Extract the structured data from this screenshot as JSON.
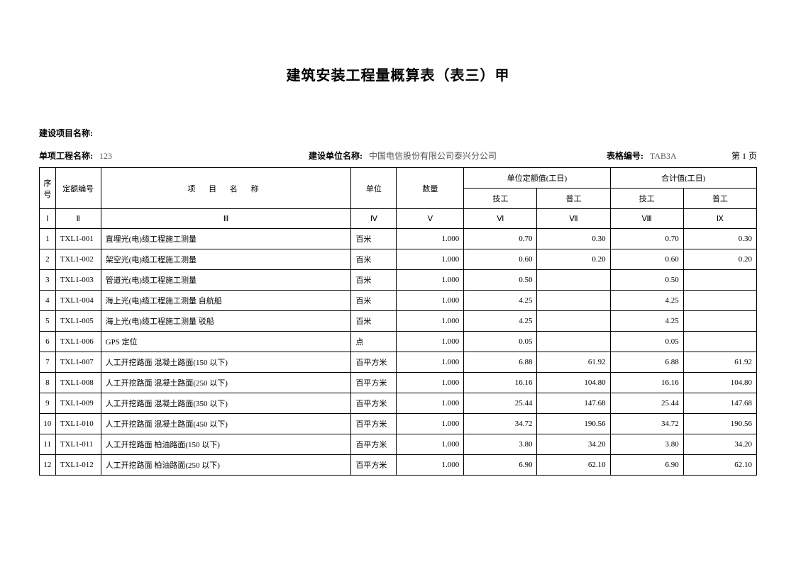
{
  "title": "建筑安装工程量概算表（表三）甲",
  "meta": {
    "projectLabel": "建设项目名称:",
    "projectValue": "",
    "itemLabel": "单项工程名称:",
    "itemValue": "123",
    "orgLabel": "建设单位名称:",
    "orgValue": "中国电信股份有限公司泰兴分公司",
    "formLabel": "表格编号:",
    "formValue": "TAB3A",
    "pageText": "第 1 页"
  },
  "headers": {
    "seq": "序号",
    "code": "定额编号",
    "name": "项 目 名 称",
    "unit": "单位",
    "qty": "数量",
    "unitQuota": "单位定额值(工日)",
    "total": "合计值(工日)",
    "skilled": "技工",
    "unskilled": "普工"
  },
  "roman": [
    "Ⅰ",
    "Ⅱ",
    "Ⅲ",
    "Ⅳ",
    "Ⅴ",
    "Ⅵ",
    "Ⅶ",
    "Ⅷ",
    "Ⅸ"
  ],
  "rows": [
    {
      "seq": "1",
      "code": "TXL1-001",
      "name": "直埋光(电)缆工程施工测量",
      "unit": "百米",
      "qty": "1.000",
      "uSk": "0.70",
      "uUn": "0.30",
      "tSk": "0.70",
      "tUn": "0.30"
    },
    {
      "seq": "2",
      "code": "TXL1-002",
      "name": "架空光(电)缆工程施工测量",
      "unit": "百米",
      "qty": "1.000",
      "uSk": "0.60",
      "uUn": "0.20",
      "tSk": "0.60",
      "tUn": "0.20"
    },
    {
      "seq": "3",
      "code": "TXL1-003",
      "name": "管道光(电)缆工程施工测量",
      "unit": "百米",
      "qty": "1.000",
      "uSk": "0.50",
      "uUn": "",
      "tSk": "0.50",
      "tUn": ""
    },
    {
      "seq": "4",
      "code": "TXL1-004",
      "name": "海上光(电)缆工程施工测量 自航船",
      "unit": "百米",
      "qty": "1.000",
      "uSk": "4.25",
      "uUn": "",
      "tSk": "4.25",
      "tUn": ""
    },
    {
      "seq": "5",
      "code": "TXL1-005",
      "name": "海上光(电)缆工程施工测量 驳船",
      "unit": "百米",
      "qty": "1.000",
      "uSk": "4.25",
      "uUn": "",
      "tSk": "4.25",
      "tUn": ""
    },
    {
      "seq": "6",
      "code": "TXL1-006",
      "name": "GPS 定位",
      "unit": "点",
      "qty": "1.000",
      "uSk": "0.05",
      "uUn": "",
      "tSk": "0.05",
      "tUn": ""
    },
    {
      "seq": "7",
      "code": "TXL1-007",
      "name": "人工开挖路面 混凝土路面(150 以下)",
      "unit": "百平方米",
      "qty": "1.000",
      "uSk": "6.88",
      "uUn": "61.92",
      "tSk": "6.88",
      "tUn": "61.92"
    },
    {
      "seq": "8",
      "code": "TXL1-008",
      "name": "人工开挖路面 混凝土路面(250 以下)",
      "unit": "百平方米",
      "qty": "1.000",
      "uSk": "16.16",
      "uUn": "104.80",
      "tSk": "16.16",
      "tUn": "104.80"
    },
    {
      "seq": "9",
      "code": "TXL1-009",
      "name": "人工开挖路面 混凝土路面(350 以下)",
      "unit": "百平方米",
      "qty": "1.000",
      "uSk": "25.44",
      "uUn": "147.68",
      "tSk": "25.44",
      "tUn": "147.68"
    },
    {
      "seq": "10",
      "code": "TXL1-010",
      "name": "人工开挖路面 混凝土路面(450 以下)",
      "unit": "百平方米",
      "qty": "1.000",
      "uSk": "34.72",
      "uUn": "190.56",
      "tSk": "34.72",
      "tUn": "190.56"
    },
    {
      "seq": "11",
      "code": "TXL1-011",
      "name": "人工开挖路面 柏油路面(150 以下)",
      "unit": "百平方米",
      "qty": "1.000",
      "uSk": "3.80",
      "uUn": "34.20",
      "tSk": "3.80",
      "tUn": "34.20"
    },
    {
      "seq": "12",
      "code": "TXL1-012",
      "name": "人工开挖路面 柏油路面(250 以下)",
      "unit": "百平方米",
      "qty": "1.000",
      "uSk": "6.90",
      "uUn": "62.10",
      "tSk": "6.90",
      "tUn": "62.10"
    }
  ]
}
